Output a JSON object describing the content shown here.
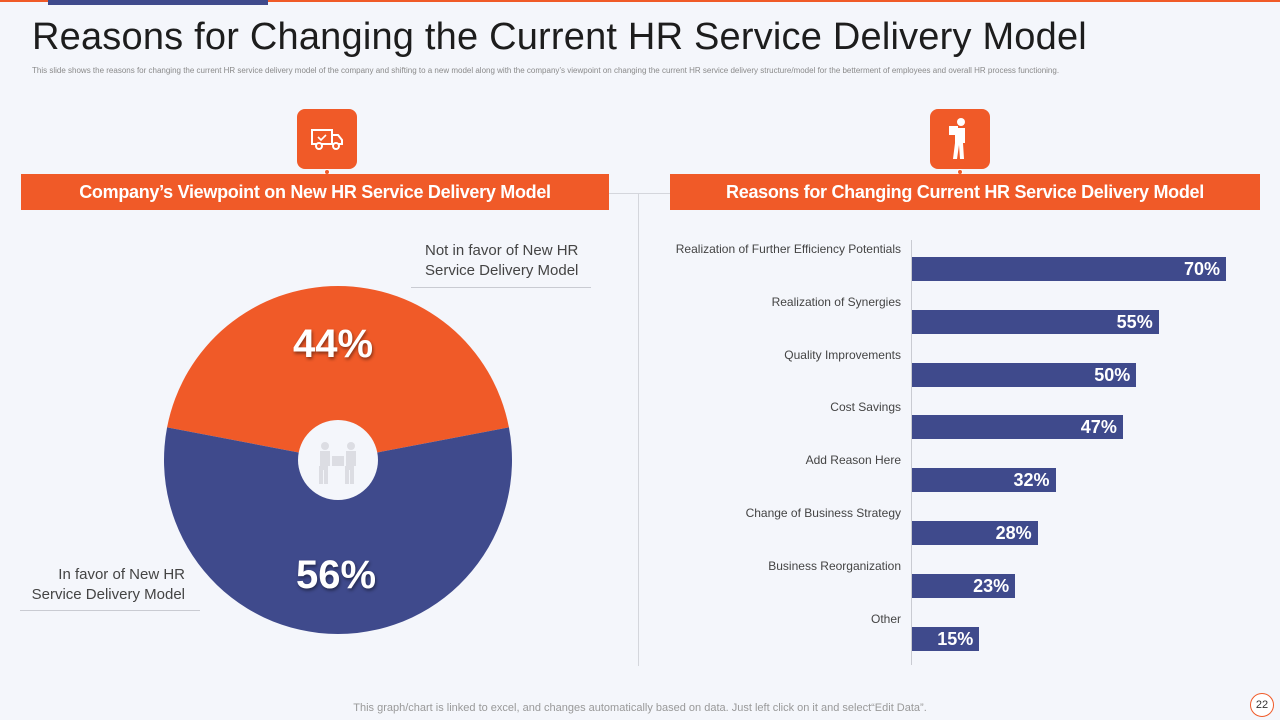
{
  "slide": {
    "title": "Reasons for Changing the Current HR Service Delivery Model",
    "subtitle": "This slide shows the reasons for changing the current HR service delivery model of the company and shifting to a new model along with the company’s viewpoint on changing the current HR service delivery structure/model for the betterment of employees and overall HR process functioning.",
    "footer": "This graph/chart is linked to excel, and changes automatically based on data. Just left click on it and select“Edit Data”.",
    "page_number": "22"
  },
  "colors": {
    "orange": "#f05a28",
    "navy": "#3f4a8c"
  },
  "left_panel": {
    "icon": "delivery-truck-icon",
    "header": "Company’s Viewpoint on New HR Service Delivery Model",
    "center_icon": "handshake-people-icon"
  },
  "right_panel": {
    "icon": "delivery-person-icon",
    "header": "Reasons for Changing Current HR Service Delivery Model"
  },
  "chart_data": [
    {
      "type": "pie",
      "title": "Company’s Viewpoint on New HR Service Delivery Model",
      "categories": [
        "Not in favor of New HR Service Delivery Model",
        "In favor of New HR Service Delivery Model"
      ],
      "values": [
        44,
        56
      ],
      "labels": [
        "44%",
        "56%"
      ],
      "colors": [
        "#f05a28",
        "#3f4a8c"
      ],
      "legend_lines": [
        [
          "Not in favor of New HR",
          "Service Delivery Model"
        ],
        [
          "In favor of New HR",
          "Service Delivery Model"
        ]
      ]
    },
    {
      "type": "bar",
      "orientation": "horizontal",
      "title": "Reasons for Changing Current HR Service Delivery Model",
      "categories": [
        "Realization of Further Efficiency Potentials",
        "Realization of Synergies",
        "Quality Improvements",
        "Cost Savings",
        "Add Reason Here",
        "Change of Business Strategy",
        "Business Reorganization",
        "Other"
      ],
      "values": [
        70,
        55,
        50,
        47,
        32,
        28,
        23,
        15
      ],
      "labels": [
        "70%",
        "55%",
        "50%",
        "47%",
        "32%",
        "28%",
        "23%",
        "15%"
      ],
      "xlim": [
        0,
        70
      ],
      "color": "#3f4a8c"
    }
  ]
}
